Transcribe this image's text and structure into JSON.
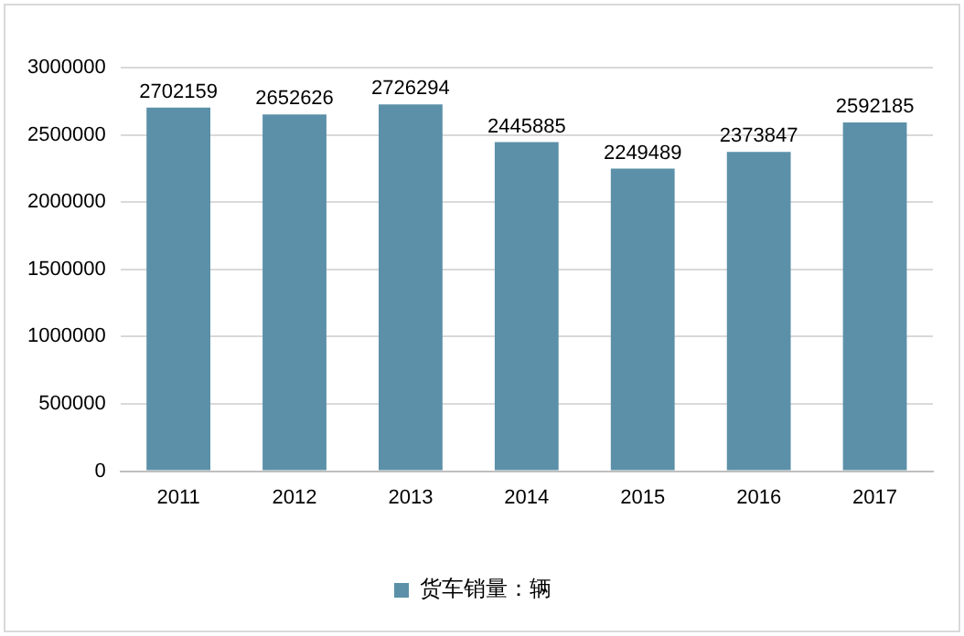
{
  "chart_data": {
    "type": "bar",
    "categories": [
      "2011",
      "2012",
      "2013",
      "2014",
      "2015",
      "2016",
      "2017"
    ],
    "series": [
      {
        "name": "货车销量：辆",
        "color": "#5b90a8",
        "values": [
          2702159,
          2652626,
          2726294,
          2445885,
          2249489,
          2373847,
          2592185
        ]
      }
    ],
    "ylim": [
      0,
      3000000
    ],
    "yticks": [
      0,
      500000,
      1000000,
      1500000,
      2000000,
      2500000,
      3000000
    ],
    "grid": "y",
    "legend": "bottom",
    "data_labels": true
  }
}
